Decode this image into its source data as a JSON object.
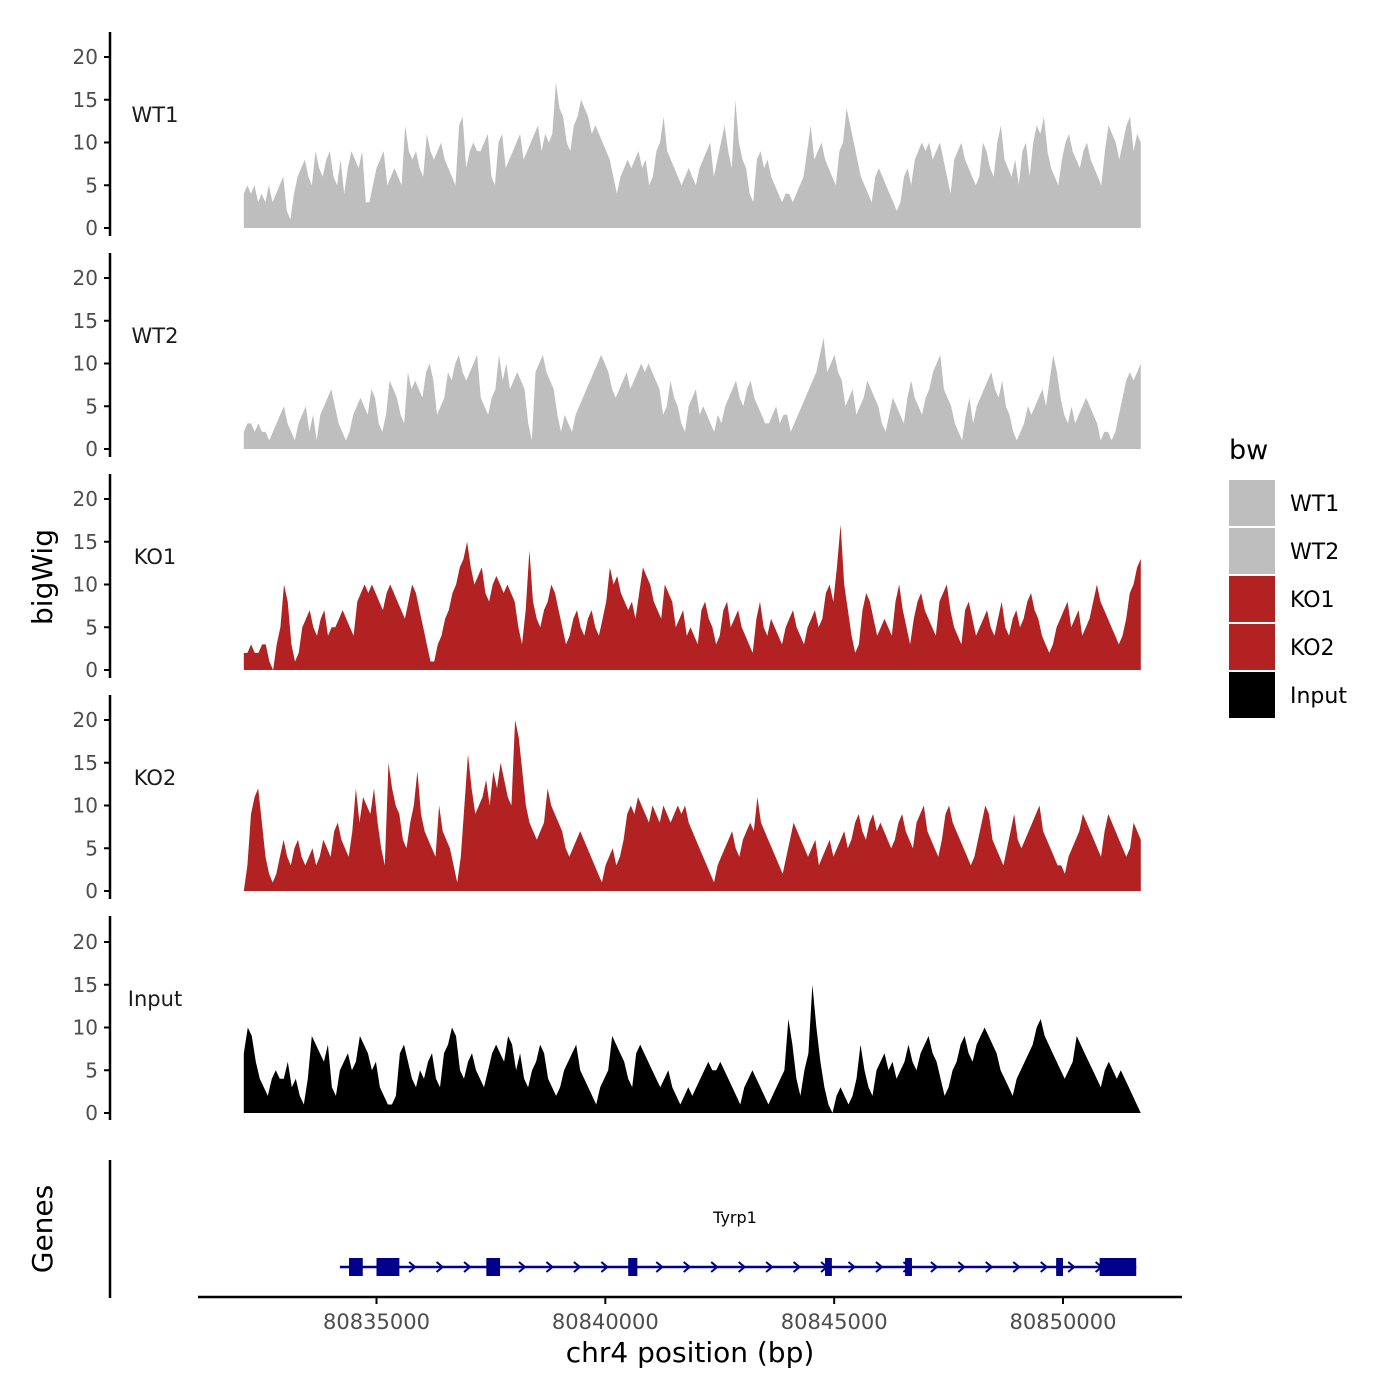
{
  "chart_data": {
    "type": "area",
    "title": "",
    "ylabel": "bigWig",
    "xlabel": "chr4 position (bp)",
    "xlim": [
      80831100,
      80852600
    ],
    "ylim": [
      0,
      23
    ],
    "y_ticks": [
      "0",
      "5",
      "10",
      "15",
      "20"
    ],
    "x_ticks": [
      {
        "value": 80835000,
        "label": "80835000"
      },
      {
        "value": 80840000,
        "label": "80840000"
      },
      {
        "value": 80845000,
        "label": "80845000"
      },
      {
        "value": 80850000,
        "label": "80850000"
      }
    ],
    "x_start": 80832100,
    "x_end": 80851700,
    "legend": {
      "title": "bw",
      "position": "right"
    },
    "series": [
      {
        "name": "WT1",
        "color": "#bebebe",
        "values": [
          4,
          5,
          4,
          5,
          3,
          4,
          3,
          5,
          3,
          4,
          5,
          6,
          2,
          1,
          4,
          6,
          7,
          8,
          6,
          5,
          9,
          7,
          6,
          8,
          9,
          6,
          5,
          8,
          4,
          7,
          9,
          8,
          7,
          9,
          3,
          3,
          5,
          7,
          8,
          9,
          5,
          6,
          7,
          6,
          5,
          12,
          9,
          8,
          9,
          7,
          6,
          11,
          9,
          8,
          9,
          10,
          8,
          7,
          6,
          5,
          12,
          13,
          7,
          9,
          10,
          9,
          9,
          10,
          11,
          6,
          5,
          10,
          11,
          7,
          8,
          9,
          10,
          11,
          8,
          9,
          10,
          11,
          12,
          9,
          11,
          10,
          11,
          17,
          14,
          13,
          10,
          9,
          12,
          13,
          15,
          14,
          13,
          11,
          12,
          11,
          10,
          9,
          8,
          6,
          4,
          6,
          7,
          8,
          7,
          8,
          9,
          7,
          8,
          5,
          6,
          9,
          10,
          13,
          9,
          8,
          7,
          6,
          5,
          6,
          7,
          6,
          5,
          7,
          8,
          9,
          10,
          6,
          8,
          10,
          12,
          9,
          7,
          15,
          10,
          8,
          7,
          4,
          3,
          8,
          9,
          7,
          8,
          6,
          5,
          4,
          3,
          4,
          4,
          3,
          4,
          5,
          6,
          9,
          12,
          8,
          9,
          10,
          8,
          7,
          6,
          5,
          9,
          10,
          14,
          12,
          10,
          8,
          6,
          5,
          4,
          3,
          6,
          7,
          6,
          5,
          4,
          3,
          2,
          3,
          6,
          7,
          5,
          8,
          9,
          10,
          9,
          10,
          8,
          9,
          10,
          8,
          6,
          4,
          8,
          9,
          10,
          8,
          7,
          6,
          5,
          6,
          10,
          9,
          7,
          6,
          10,
          12,
          8,
          7,
          6,
          8,
          5,
          9,
          10,
          6,
          10,
          12,
          11,
          13,
          9,
          7,
          6,
          5,
          8,
          10,
          11,
          9,
          8,
          7,
          9,
          10,
          8,
          7,
          6,
          5,
          9,
          12,
          11,
          10,
          8,
          10,
          12,
          13,
          9,
          11,
          10
        ]
      },
      {
        "name": "WT2",
        "color": "#bebebe",
        "values": [
          2,
          3,
          3,
          2,
          3,
          2,
          2,
          1,
          2,
          3,
          4,
          5,
          3,
          2,
          1,
          3,
          4,
          5,
          2,
          4,
          1,
          4,
          5,
          6,
          7,
          5,
          3,
          2,
          1,
          2,
          4,
          5,
          6,
          5,
          4,
          7,
          6,
          3,
          2,
          4,
          8,
          7,
          6,
          4,
          3,
          9,
          7,
          8,
          7,
          6,
          9,
          10,
          8,
          4,
          5,
          6,
          9,
          8,
          10,
          11,
          9,
          8,
          9,
          10,
          11,
          6,
          5,
          4,
          6,
          7,
          11,
          8,
          10,
          7,
          8,
          9,
          8,
          7,
          3,
          1,
          9,
          10,
          11,
          9,
          8,
          7,
          4,
          2,
          4,
          3,
          2,
          4,
          5,
          6,
          7,
          8,
          9,
          10,
          11,
          10,
          9,
          7,
          6,
          7,
          8,
          9,
          7,
          8,
          9,
          10,
          9,
          10,
          9,
          8,
          7,
          4,
          5,
          8,
          6,
          5,
          3,
          2,
          5,
          6,
          7,
          4,
          5,
          4,
          3,
          2,
          4,
          3,
          5,
          6,
          7,
          8,
          6,
          5,
          7,
          8,
          6,
          5,
          4,
          3,
          3,
          4,
          5,
          3,
          4,
          4,
          2,
          3,
          4,
          5,
          6,
          7,
          8,
          9,
          11,
          13,
          9,
          10,
          11,
          9,
          8,
          5,
          6,
          7,
          4,
          5,
          6,
          8,
          7,
          6,
          5,
          3,
          2,
          4,
          6,
          5,
          4,
          3,
          6,
          8,
          6,
          5,
          4,
          6,
          7,
          9,
          10,
          11,
          7,
          6,
          5,
          3,
          2,
          1,
          4,
          6,
          3,
          5,
          6,
          7,
          8,
          9,
          7,
          6,
          8,
          5,
          4,
          2,
          1,
          2,
          3,
          5,
          4,
          5,
          6,
          7,
          5,
          8,
          11,
          9,
          6,
          4,
          3,
          5,
          3,
          4,
          5,
          6,
          5,
          4,
          3,
          1,
          2,
          2,
          1,
          2,
          4,
          6,
          8,
          9,
          8,
          9,
          10
        ]
      },
      {
        "name": "KO1",
        "color": "#b22222",
        "values": [
          2,
          2,
          3,
          2,
          2,
          3,
          3,
          1,
          0,
          3,
          5,
          10,
          8,
          3,
          1,
          2,
          5,
          6,
          7,
          5,
          4,
          6,
          7,
          4,
          5,
          5,
          6,
          7,
          6,
          5,
          4,
          8,
          9,
          10,
          9,
          10,
          9,
          8,
          7,
          9,
          10,
          9,
          8,
          7,
          6,
          8,
          10,
          9,
          7,
          5,
          3,
          1,
          1,
          3,
          4,
          6,
          7,
          9,
          10,
          12,
          13,
          15,
          12,
          10,
          11,
          12,
          9,
          8,
          10,
          11,
          10,
          9,
          10,
          9,
          8,
          5,
          3,
          7,
          14,
          8,
          6,
          5,
          7,
          8,
          10,
          9,
          7,
          5,
          3,
          4,
          6,
          7,
          5,
          4,
          6,
          7,
          5,
          4,
          6,
          8,
          12,
          10,
          11,
          9,
          8,
          7,
          8,
          6,
          9,
          12,
          11,
          10,
          8,
          7,
          6,
          10,
          9,
          8,
          5,
          6,
          7,
          4,
          5,
          4,
          3,
          7,
          8,
          6,
          5,
          3,
          4,
          7,
          8,
          5,
          6,
          7,
          5,
          4,
          3,
          2,
          6,
          8,
          5,
          4,
          6,
          5,
          4,
          3,
          5,
          6,
          7,
          5,
          4,
          3,
          5,
          6,
          7,
          5,
          6,
          9,
          10,
          8,
          12,
          17,
          10,
          7,
          4,
          2,
          3,
          7,
          9,
          8,
          6,
          4,
          5,
          6,
          5,
          4,
          8,
          10,
          7,
          5,
          3,
          6,
          8,
          9,
          7,
          6,
          5,
          4,
          8,
          9,
          10,
          7,
          5,
          4,
          3,
          7,
          8,
          6,
          4,
          5,
          6,
          7,
          5,
          4,
          6,
          8,
          5,
          4,
          6,
          7,
          5,
          6,
          8,
          9,
          7,
          6,
          4,
          3,
          2,
          3,
          5,
          6,
          7,
          8,
          5,
          6,
          7,
          4,
          5,
          6,
          8,
          10,
          8,
          7,
          6,
          5,
          4,
          3,
          4,
          6,
          9,
          10,
          12,
          13
        ]
      },
      {
        "name": "KO2",
        "color": "#b22222",
        "values": [
          0,
          3,
          9,
          11,
          12,
          8,
          4,
          2,
          1,
          2,
          4,
          6,
          4,
          3,
          5,
          6,
          4,
          3,
          4,
          5,
          3,
          4,
          6,
          5,
          4,
          7,
          8,
          6,
          5,
          4,
          7,
          12,
          8,
          11,
          10,
          9,
          12,
          8,
          5,
          3,
          15,
          12,
          10,
          9,
          6,
          5,
          8,
          10,
          14,
          9,
          7,
          6,
          5,
          4,
          10,
          7,
          6,
          5,
          3,
          1,
          4,
          10,
          16,
          12,
          9,
          10,
          11,
          13,
          10,
          14,
          12,
          15,
          13,
          11,
          10,
          20,
          18,
          14,
          10,
          8,
          7,
          6,
          7,
          8,
          12,
          10,
          9,
          8,
          7,
          5,
          4,
          5,
          6,
          7,
          6,
          5,
          4,
          3,
          2,
          1,
          3,
          4,
          5,
          3,
          4,
          6,
          9,
          10,
          9,
          11,
          10,
          9,
          8,
          10,
          9,
          8,
          10,
          9,
          8,
          9,
          10,
          9,
          10,
          8,
          7,
          6,
          5,
          4,
          3,
          2,
          1,
          3,
          4,
          5,
          6,
          7,
          5,
          4,
          6,
          7,
          8,
          7,
          11,
          8,
          7,
          6,
          5,
          4,
          3,
          2,
          4,
          6,
          8,
          7,
          6,
          5,
          4,
          5,
          6,
          3,
          4,
          5,
          6,
          4,
          5,
          6,
          7,
          5,
          6,
          8,
          9,
          7,
          6,
          8,
          9,
          7,
          8,
          7,
          6,
          5,
          6,
          8,
          9,
          7,
          6,
          5,
          8,
          9,
          10,
          7,
          6,
          5,
          4,
          6,
          9,
          10,
          8,
          7,
          6,
          5,
          4,
          3,
          4,
          6,
          8,
          10,
          9,
          6,
          5,
          4,
          3,
          5,
          7,
          9,
          6,
          5,
          6,
          7,
          8,
          9,
          10,
          7,
          6,
          5,
          4,
          3,
          3,
          2,
          4,
          5,
          6,
          7,
          9,
          8,
          7,
          6,
          5,
          4,
          7,
          9,
          8,
          7,
          6,
          5,
          4,
          5,
          8,
          7,
          6
        ]
      },
      {
        "name": "Input",
        "color": "#000000",
        "values": [
          7,
          10,
          9,
          6,
          4,
          3,
          2,
          4,
          5,
          4,
          4,
          6,
          3,
          4,
          2,
          1,
          4,
          9,
          8,
          7,
          6,
          8,
          3,
          2,
          5,
          6,
          7,
          5,
          6,
          9,
          8,
          7,
          5,
          6,
          3,
          2,
          1,
          1,
          2,
          7,
          8,
          6,
          4,
          3,
          5,
          4,
          6,
          7,
          4,
          3,
          7,
          8,
          10,
          9,
          5,
          4,
          6,
          7,
          5,
          4,
          3,
          5,
          7,
          8,
          7,
          6,
          9,
          8,
          5,
          7,
          4,
          3,
          5,
          6,
          8,
          7,
          4,
          3,
          2,
          3,
          5,
          6,
          7,
          8,
          5,
          4,
          3,
          2,
          1,
          3,
          4,
          5,
          9,
          8,
          7,
          6,
          4,
          3,
          7,
          8,
          7,
          6,
          5,
          4,
          3,
          4,
          5,
          3,
          2,
          1,
          2,
          3,
          2,
          3,
          4,
          5,
          6,
          5,
          5,
          6,
          5,
          4,
          3,
          2,
          1,
          3,
          4,
          5,
          4,
          3,
          2,
          1,
          2,
          3,
          4,
          5,
          11,
          8,
          4,
          2,
          5,
          7,
          15,
          10,
          6,
          3,
          1,
          0,
          2,
          3,
          2,
          1,
          2,
          4,
          8,
          5,
          3,
          2,
          5,
          6,
          7,
          5,
          6,
          4,
          5,
          6,
          8,
          6,
          5,
          7,
          8,
          9,
          7,
          6,
          4,
          2,
          3,
          5,
          6,
          8,
          9,
          7,
          6,
          8,
          9,
          10,
          9,
          8,
          7,
          5,
          4,
          3,
          2,
          4,
          5,
          6,
          7,
          8,
          10,
          11,
          9,
          8,
          7,
          6,
          5,
          4,
          5,
          6,
          9,
          8,
          7,
          6,
          5,
          4,
          3,
          5,
          6,
          5,
          4,
          5,
          4,
          3,
          2,
          1,
          0
        ]
      }
    ],
    "gene_track": {
      "label": "Genes",
      "gene_name": "Tyrp1",
      "start": 80834200,
      "end": 80851600,
      "color": "#00008b",
      "exons": [
        [
          80834400,
          80834700
        ],
        [
          80835000,
          80835500
        ],
        [
          80837400,
          80837700
        ],
        [
          80840500,
          80840700
        ],
        [
          80844800,
          80844950
        ],
        [
          80846550,
          80846700
        ],
        [
          80849850,
          80850000
        ],
        [
          80850800,
          80851600
        ]
      ]
    }
  }
}
